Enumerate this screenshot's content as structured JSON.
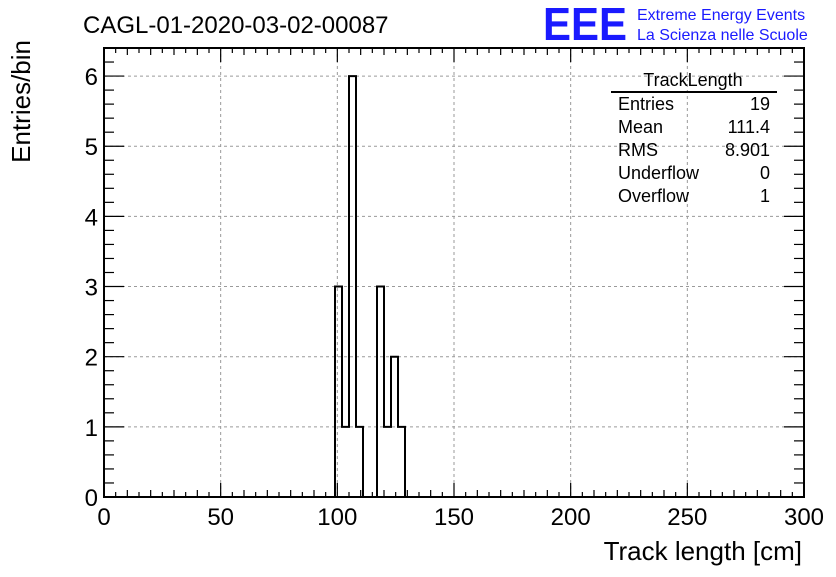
{
  "header": {
    "run_title": "CAGL-01-2020-03-02-00087",
    "logo_text": "EEE",
    "logo_line1": "Extreme Energy Events",
    "logo_line2": "La Scienza nelle Scuole"
  },
  "colors": {
    "logo": "#1a1aff",
    "histogram": "#000000",
    "grid": "#9a9a9a"
  },
  "stats_box": {
    "title": "TrackLength",
    "rows": [
      {
        "label": "Entries",
        "value": "19"
      },
      {
        "label": "Mean",
        "value": "111.4"
      },
      {
        "label": "RMS",
        "value": "8.901"
      },
      {
        "label": "Underflow",
        "value": "0"
      },
      {
        "label": "Overflow",
        "value": "1"
      }
    ]
  },
  "chart_data": {
    "type": "bar",
    "style": "step-histogram",
    "xlabel": "Track length [cm]",
    "ylabel": "Entries/bin",
    "xlim": [
      0,
      300
    ],
    "ylim": [
      0,
      6.4
    ],
    "grid": true,
    "bin_width": 3,
    "x_ticks": [
      0,
      50,
      100,
      150,
      200,
      250,
      300
    ],
    "y_ticks": [
      0,
      1,
      2,
      3,
      4,
      5,
      6
    ],
    "bins": [
      {
        "x_low": 99,
        "x_high": 102,
        "value": 3
      },
      {
        "x_low": 102,
        "x_high": 105,
        "value": 1
      },
      {
        "x_low": 105,
        "x_high": 108,
        "value": 6
      },
      {
        "x_low": 108,
        "x_high": 111,
        "value": 1
      },
      {
        "x_low": 117,
        "x_high": 120,
        "value": 3
      },
      {
        "x_low": 120,
        "x_high": 123,
        "value": 1
      },
      {
        "x_low": 123,
        "x_high": 126,
        "value": 2
      },
      {
        "x_low": 126,
        "x_high": 129,
        "value": 1
      }
    ]
  }
}
